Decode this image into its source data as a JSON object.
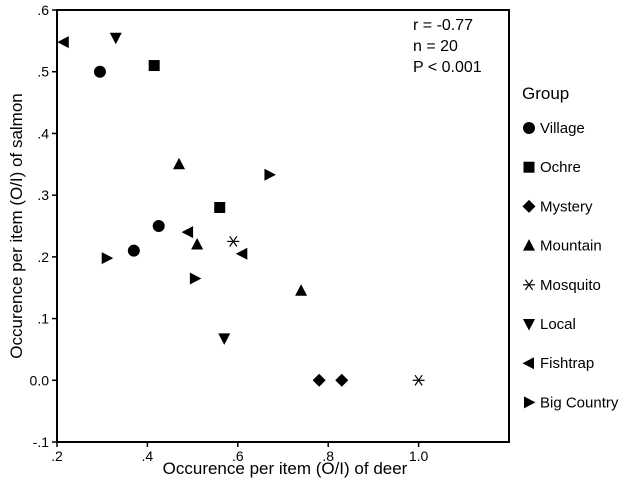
{
  "chart_data": {
    "type": "scatter",
    "xlabel": "Occurence per item (O/I) of deer",
    "ylabel": "Occurence per item (O/I) of salmon",
    "xlim": [
      0.2,
      1.2
    ],
    "ylim": [
      -0.1,
      0.6
    ],
    "x_ticks": [
      0.2,
      0.4,
      0.6,
      0.8,
      1.0
    ],
    "x_tick_labels": [
      ".2",
      ".4",
      ".6",
      ".8",
      "1.0"
    ],
    "y_ticks": [
      -0.1,
      0.0,
      0.1,
      0.2,
      0.3,
      0.4,
      0.5,
      0.6
    ],
    "y_tick_labels": [
      "-.1",
      "0.0",
      ".1",
      ".2",
      ".3",
      ".4",
      ".5",
      ".6"
    ],
    "grid": false,
    "legend_placement": "right",
    "stats": [
      "r = -0.77",
      "n = 20",
      "P < 0.001"
    ],
    "legend_title": "Group",
    "series": [
      {
        "name": "Village",
        "marker": "circle",
        "points": [
          [
            0.295,
            0.5
          ],
          [
            0.37,
            0.21
          ],
          [
            0.425,
            0.25
          ]
        ]
      },
      {
        "name": "Ochre",
        "marker": "square",
        "points": [
          [
            0.415,
            0.51
          ],
          [
            0.56,
            0.28
          ]
        ]
      },
      {
        "name": "Mystery",
        "marker": "diamond",
        "points": [
          [
            0.78,
            0.0
          ],
          [
            0.83,
            0.0
          ]
        ]
      },
      {
        "name": "Mountain",
        "marker": "triangle-up",
        "points": [
          [
            0.47,
            0.35
          ],
          [
            0.51,
            0.22
          ],
          [
            0.74,
            0.145
          ]
        ]
      },
      {
        "name": "Mosquito",
        "marker": "asterisk",
        "points": [
          [
            0.59,
            0.225
          ],
          [
            1.0,
            0.0
          ]
        ]
      },
      {
        "name": "Local",
        "marker": "triangle-down",
        "points": [
          [
            0.33,
            0.555
          ],
          [
            0.57,
            0.068
          ]
        ]
      },
      {
        "name": "Fishtrap",
        "marker": "triangle-left",
        "points": [
          [
            0.215,
            0.548
          ],
          [
            0.49,
            0.24
          ],
          [
            0.61,
            0.205
          ]
        ]
      },
      {
        "name": "Big Country",
        "marker": "triangle-right",
        "points": [
          [
            0.31,
            0.198
          ],
          [
            0.505,
            0.165
          ],
          [
            0.67,
            0.333
          ]
        ]
      }
    ]
  }
}
